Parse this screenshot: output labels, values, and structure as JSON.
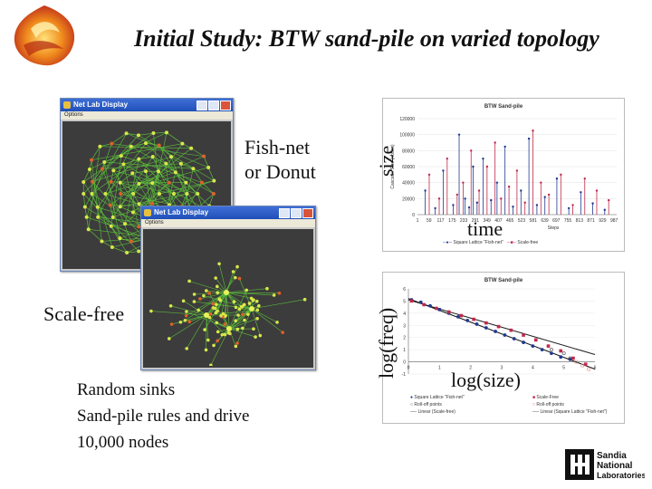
{
  "slide": {
    "title": "Initial Study: BTW sand-pile on varied topology",
    "label_fishnet_1": "Fish-net",
    "label_fishnet_2": "or Donut",
    "label_scalefree": "Scale-free",
    "description": [
      "Random sinks",
      "Sand-pile rules and drive",
      "10,000 nodes"
    ],
    "axis_size": "size",
    "axis_time": "time",
    "axis_logfreq": "log(freq)",
    "axis_logsize": "log(size)"
  },
  "windows": [
    {
      "title": "Net Lab Display",
      "menu": "Options"
    },
    {
      "title": "Net Lab Display",
      "menu": "Options"
    }
  ],
  "chart_data": [
    {
      "type": "line",
      "title": "BTW Sand-pile",
      "ylabel": "Cascade Size (nodes)",
      "xlabel": "Steps",
      "ylim": [
        0,
        120000
      ],
      "yticks": [
        "120000",
        "100000",
        "80000",
        "60000",
        "40000",
        "20000",
        "0"
      ],
      "xticks": [
        "1",
        "59",
        "117",
        "175",
        "233",
        "291",
        "349",
        "407",
        "465",
        "523",
        "581",
        "639",
        "697",
        "755",
        "813",
        "871",
        "929",
        "987"
      ],
      "series": [
        {
          "name": "Square Lattice \"Fish-net\"",
          "color": "#1f3a8f",
          "x": [
            40,
            90,
            130,
            180,
            210,
            240,
            260,
            280,
            300,
            330,
            370,
            400,
            440,
            480,
            520,
            560,
            600,
            640,
            700,
            760,
            820,
            880,
            940
          ],
          "values": [
            30000,
            8000,
            55000,
            12000,
            100000,
            20000,
            9000,
            60000,
            15000,
            70000,
            18000,
            40000,
            85000,
            10000,
            30000,
            95000,
            12000,
            22000,
            45000,
            8000,
            28000,
            14000,
            6000
          ]
        },
        {
          "name": "Scale-free",
          "color": "#c0294a",
          "x": [
            60,
            110,
            150,
            200,
            230,
            270,
            310,
            350,
            390,
            420,
            460,
            500,
            540,
            580,
            620,
            660,
            720,
            780,
            840,
            900,
            960
          ],
          "values": [
            50000,
            20000,
            70000,
            25000,
            40000,
            80000,
            30000,
            60000,
            90000,
            20000,
            35000,
            55000,
            15000,
            105000,
            40000,
            25000,
            50000,
            12000,
            45000,
            30000,
            18000
          ]
        }
      ]
    },
    {
      "type": "scatter",
      "title": "BTW Sand-pile",
      "xlim": [
        0,
        6
      ],
      "ylim": [
        -1,
        6
      ],
      "xticks": [
        "0",
        "1",
        "2",
        "3",
        "4",
        "5",
        "6"
      ],
      "yticks": [
        "6",
        "5",
        "4",
        "3",
        "2",
        "1",
        "0",
        "-1"
      ],
      "series": [
        {
          "name": "Square Lattice \"Fish-net\"",
          "color": "#1f3a8f",
          "x": [
            0.1,
            0.4,
            0.7,
            1.0,
            1.3,
            1.6,
            1.9,
            2.2,
            2.5,
            2.8,
            3.1,
            3.4,
            3.7,
            4.0,
            4.3,
            4.6,
            4.9,
            5.2
          ],
          "values": [
            5.1,
            4.9,
            4.6,
            4.3,
            4.0,
            3.7,
            3.4,
            3.1,
            2.8,
            2.5,
            2.2,
            1.9,
            1.6,
            1.3,
            1.0,
            0.7,
            0.4,
            0.2
          ]
        },
        {
          "name": "Scale-Free",
          "color": "#c0294a",
          "x": [
            0.1,
            0.5,
            0.9,
            1.3,
            1.7,
            2.1,
            2.5,
            2.9,
            3.3,
            3.7,
            4.1,
            4.5,
            4.9,
            5.3,
            5.7
          ],
          "values": [
            5.0,
            4.7,
            4.4,
            4.1,
            3.8,
            3.5,
            3.2,
            2.9,
            2.6,
            2.2,
            1.8,
            1.3,
            0.9,
            0.3,
            -0.2
          ]
        },
        {
          "name": "Roll-off points",
          "color": "#3a3a3a",
          "x": [
            4.6,
            5.0,
            5.2
          ],
          "values": [
            1.0,
            0.7,
            0.3
          ]
        },
        {
          "name": "Roll-off points",
          "color": "#e08a8a",
          "x": [
            5.4,
            5.6,
            5.8
          ],
          "values": [
            0.0,
            -0.3,
            -0.6
          ]
        }
      ],
      "fits": [
        {
          "name": "Linear (Scale-free)",
          "color": "#222222",
          "x": [
            0,
            6
          ],
          "values": [
            5.1,
            0.6
          ]
        },
        {
          "name": "Linear (Square Lattice \"Fish-net\")",
          "color": "#111111",
          "x": [
            0,
            6
          ],
          "values": [
            5.2,
            -0.6
          ]
        }
      ]
    }
  ]
}
